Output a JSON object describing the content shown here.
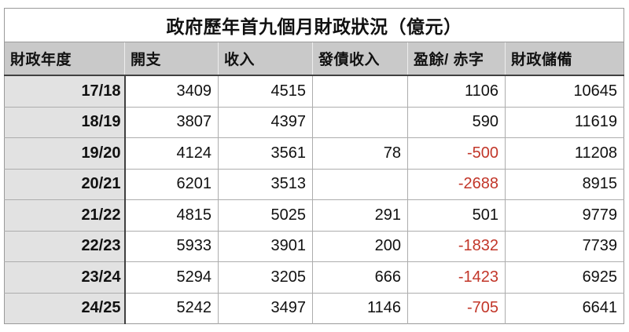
{
  "chart_data": {
    "type": "table",
    "title": "政府歷年首九個月財政狀況（億元）",
    "columns": [
      "財政年度",
      "開支",
      "收入",
      "發債收入",
      "盈餘/ 赤字",
      "財政儲備"
    ],
    "rows": [
      [
        "17/18",
        "3409",
        "4515",
        "",
        "1106",
        "10645"
      ],
      [
        "18/19",
        "3807",
        "4397",
        "",
        "590",
        "11619"
      ],
      [
        "19/20",
        "4124",
        "3561",
        "78",
        "-500",
        "11208"
      ],
      [
        "20/21",
        "6201",
        "3513",
        "",
        "-2688",
        "8915"
      ],
      [
        "21/22",
        "4815",
        "5025",
        "291",
        "501",
        "9779"
      ],
      [
        "22/23",
        "5933",
        "3901",
        "200",
        "-1832",
        "7739"
      ],
      [
        "23/24",
        "5294",
        "3205",
        "666",
        "-1423",
        "6925"
      ],
      [
        "24/25",
        "5242",
        "3497",
        "1146",
        "-705",
        "6641"
      ]
    ],
    "negative_values_shown_in_red": true
  },
  "colors": {
    "negative": "#c23629",
    "header_bg": "#c9c9c9",
    "year_column_bg": "#e2e2e2",
    "border_dark": "#404040",
    "border_light": "#adadad",
    "border_outer": "#9a9a9a"
  }
}
